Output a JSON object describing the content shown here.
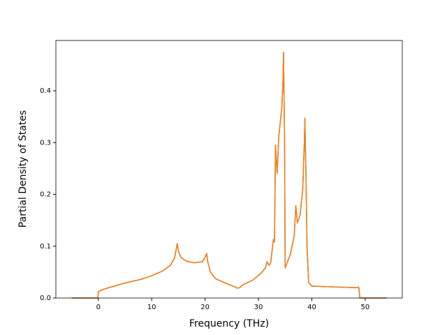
{
  "chart_data": {
    "type": "line",
    "x_label": "Frequency (THz)",
    "y_label": "Partial Density of States",
    "x": [
      -5,
      -0.1,
      0,
      0.5,
      2,
      5,
      8,
      10,
      12,
      13.5,
      14.3,
      14.7,
      14.8,
      15,
      15.5,
      16.5,
      18,
      19.5,
      20,
      20.3,
      20.5,
      21,
      22,
      24,
      25.5,
      26,
      26.5,
      27,
      29,
      30.5,
      31.3,
      31.6,
      32,
      32.3,
      32.8,
      33,
      33.2,
      33.5,
      33.8,
      34.4,
      34.6,
      34.7,
      34.9,
      35,
      36,
      36.7,
      37,
      37.3,
      37.8,
      38.3,
      38.6,
      38.7,
      38.9,
      39.1,
      39.4,
      40,
      45,
      48.5,
      48.8,
      49,
      54
    ],
    "series": [
      {
        "color": "#1f77b4",
        "values": [
          0,
          0,
          0.012,
          0.015,
          0.02,
          0.029,
          0.036,
          0.043,
          0.052,
          0.063,
          0.078,
          0.1,
          0.105,
          0.09,
          0.078,
          0.071,
          0.068,
          0.07,
          0.078,
          0.086,
          0.07,
          0.05,
          0.037,
          0.028,
          0.022,
          0.019,
          0.02,
          0.025,
          0.035,
          0.048,
          0.058,
          0.07,
          0.063,
          0.068,
          0.113,
          0.108,
          0.295,
          0.24,
          0.31,
          0.37,
          0.42,
          0.474,
          0.3,
          0.058,
          0.085,
          0.12,
          0.178,
          0.145,
          0.16,
          0.21,
          0.3,
          0.347,
          0.24,
          0.1,
          0.03,
          0.023,
          0.021,
          0.02,
          0.021,
          0,
          0
        ]
      },
      {
        "color": "#ff7f0e",
        "values": [
          0,
          0,
          0.012,
          0.015,
          0.02,
          0.029,
          0.036,
          0.043,
          0.052,
          0.063,
          0.078,
          0.1,
          0.105,
          0.09,
          0.078,
          0.071,
          0.068,
          0.07,
          0.078,
          0.086,
          0.07,
          0.05,
          0.037,
          0.028,
          0.022,
          0.019,
          0.02,
          0.025,
          0.035,
          0.048,
          0.058,
          0.07,
          0.063,
          0.068,
          0.113,
          0.108,
          0.295,
          0.24,
          0.31,
          0.37,
          0.42,
          0.474,
          0.3,
          0.058,
          0.085,
          0.12,
          0.178,
          0.145,
          0.16,
          0.21,
          0.3,
          0.347,
          0.24,
          0.1,
          0.03,
          0.023,
          0.021,
          0.02,
          0.021,
          0,
          0
        ]
      }
    ],
    "xlim": [
      -7.95,
      56.95
    ],
    "xticks": [
      0,
      10,
      20,
      30,
      40,
      50
    ],
    "ylim": [
      0,
      0.497
    ],
    "yticks": [
      {
        "value": 0,
        "label": "0.0"
      },
      0.1,
      0.2,
      0.3,
      0.4
    ],
    "grid": false
  }
}
